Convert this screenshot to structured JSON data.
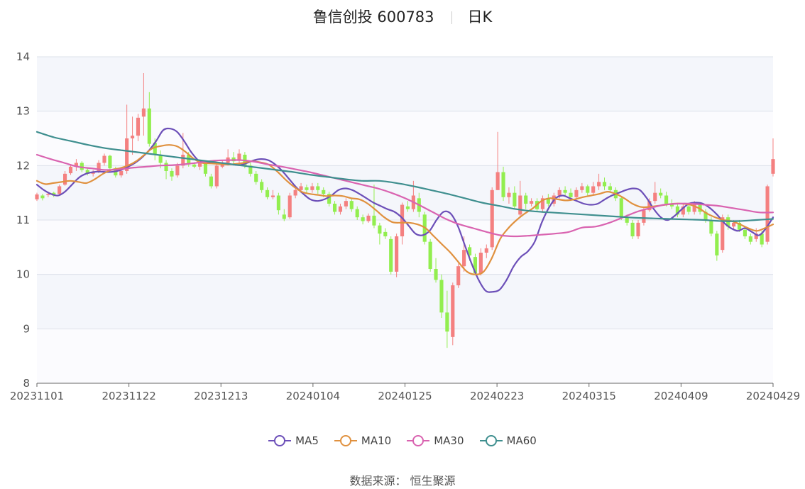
{
  "title": {
    "name": "鲁信创投 600783",
    "period": "日K"
  },
  "source": "数据来源： 恒生聚源",
  "colors": {
    "up": "#f48080",
    "down": "#92ee4f",
    "band_a": "#f4f6fb",
    "band_b": "#fbfbfe",
    "grid": "#dde1ea"
  },
  "chart_data": {
    "type": "candlestick",
    "title": "鲁信创投 600783 日K",
    "ylim": [
      8,
      14
    ],
    "y_ticks": [
      "8",
      "9",
      "10",
      "11",
      "12",
      "13",
      "14"
    ],
    "x_ticks": [
      "20231101",
      "20231122",
      "20231213",
      "20240104",
      "20240125",
      "20240223",
      "20240315",
      "20240409",
      "20240429"
    ],
    "grid": true,
    "legend_position": "bottom",
    "candles": [
      [
        11.38,
        11.47,
        11.35,
        11.5
      ],
      [
        11.45,
        11.4,
        11.36,
        11.48
      ],
      [
        11.46,
        11.48,
        11.42,
        11.52
      ],
      [
        11.5,
        11.45,
        11.42,
        11.52
      ],
      [
        11.48,
        11.62,
        11.46,
        11.65
      ],
      [
        11.65,
        11.85,
        11.63,
        11.9
      ],
      [
        11.86,
        11.98,
        11.83,
        12.02
      ],
      [
        11.98,
        12.05,
        11.9,
        12.12
      ],
      [
        12.05,
        11.92,
        11.88,
        12.08
      ],
      [
        11.92,
        11.85,
        11.82,
        11.96
      ],
      [
        11.85,
        11.88,
        11.8,
        11.92
      ],
      [
        11.9,
        12.05,
        11.86,
        12.1
      ],
      [
        12.05,
        12.18,
        12.0,
        12.22
      ],
      [
        12.18,
        11.95,
        11.9,
        12.2
      ],
      [
        11.95,
        11.82,
        11.78,
        11.98
      ],
      [
        11.82,
        11.9,
        11.78,
        11.95
      ],
      [
        11.9,
        12.5,
        11.85,
        13.12
      ],
      [
        12.5,
        12.55,
        12.2,
        12.9
      ],
      [
        12.55,
        12.88,
        12.45,
        12.95
      ],
      [
        12.9,
        13.05,
        12.55,
        13.7
      ],
      [
        13.05,
        12.4,
        12.35,
        13.35
      ],
      [
        12.42,
        12.2,
        12.1,
        12.5
      ],
      [
        12.2,
        12.05,
        11.95,
        12.28
      ],
      [
        12.05,
        11.9,
        11.75,
        12.1
      ],
      [
        11.9,
        11.8,
        11.72,
        11.95
      ],
      [
        11.82,
        12.0,
        11.78,
        12.05
      ],
      [
        12.0,
        12.2,
        11.95,
        12.6
      ],
      [
        12.2,
        12.02,
        11.98,
        12.25
      ],
      [
        12.02,
        11.98,
        11.95,
        12.06
      ],
      [
        11.98,
        12.05,
        11.92,
        12.1
      ],
      [
        12.05,
        11.85,
        11.8,
        12.08
      ],
      [
        11.8,
        11.62,
        11.58,
        11.85
      ],
      [
        11.62,
        12.0,
        11.58,
        12.05
      ],
      [
        11.98,
        12.05,
        11.95,
        12.1
      ],
      [
        12.05,
        12.15,
        12.0,
        12.3
      ],
      [
        12.15,
        12.08,
        12.0,
        12.25
      ],
      [
        12.1,
        12.22,
        12.05,
        12.3
      ],
      [
        12.2,
        12.0,
        11.95,
        12.25
      ],
      [
        12.0,
        11.85,
        11.8,
        12.05
      ],
      [
        11.85,
        11.7,
        11.65,
        11.9
      ],
      [
        11.7,
        11.55,
        11.5,
        11.75
      ],
      [
        11.55,
        11.42,
        11.38,
        11.6
      ],
      [
        11.42,
        11.45,
        11.38,
        11.55
      ],
      [
        11.45,
        11.18,
        11.1,
        11.5
      ],
      [
        11.1,
        11.02,
        10.98,
        11.2
      ],
      [
        11.05,
        11.45,
        11.02,
        11.5
      ],
      [
        11.45,
        11.55,
        11.4,
        11.6
      ],
      [
        11.55,
        11.62,
        11.5,
        11.68
      ],
      [
        11.6,
        11.55,
        11.5,
        11.65
      ],
      [
        11.55,
        11.62,
        11.5,
        11.68
      ],
      [
        11.62,
        11.55,
        11.48,
        11.68
      ],
      [
        11.55,
        11.48,
        11.42,
        11.6
      ],
      [
        11.48,
        11.3,
        11.25,
        11.52
      ],
      [
        11.3,
        11.15,
        11.1,
        11.35
      ],
      [
        11.15,
        11.25,
        11.1,
        11.3
      ],
      [
        11.25,
        11.35,
        11.2,
        11.4
      ],
      [
        11.35,
        11.2,
        11.15,
        11.4
      ],
      [
        11.2,
        11.05,
        11.0,
        11.25
      ],
      [
        11.05,
        10.98,
        10.92,
        11.1
      ],
      [
        10.98,
        11.08,
        10.95,
        11.12
      ],
      [
        11.08,
        10.9,
        10.85,
        11.65
      ],
      [
        10.9,
        10.75,
        10.55,
        10.95
      ],
      [
        10.78,
        10.7,
        10.65,
        10.85
      ],
      [
        10.65,
        10.05,
        10.0,
        10.7
      ],
      [
        10.05,
        10.7,
        9.95,
        10.75
      ],
      [
        10.7,
        11.28,
        10.55,
        11.32
      ],
      [
        11.25,
        11.2,
        11.15,
        11.35
      ],
      [
        11.2,
        11.45,
        11.15,
        11.72
      ],
      [
        11.4,
        11.15,
        11.05,
        11.5
      ],
      [
        11.1,
        10.6,
        10.55,
        11.15
      ],
      [
        10.6,
        10.1,
        10.05,
        10.65
      ],
      [
        10.1,
        9.9,
        9.85,
        10.3
      ],
      [
        9.9,
        9.3,
        9.2,
        10.0
      ],
      [
        9.3,
        8.95,
        8.65,
        9.7
      ],
      [
        8.85,
        9.8,
        8.7,
        9.85
      ],
      [
        9.8,
        10.15,
        9.75,
        10.2
      ],
      [
        10.15,
        10.45,
        10.05,
        10.7
      ],
      [
        10.5,
        10.35,
        10.25,
        10.55
      ],
      [
        10.32,
        10.02,
        9.98,
        10.38
      ],
      [
        10.02,
        10.4,
        9.98,
        10.48
      ],
      [
        10.4,
        10.48,
        10.3,
        10.55
      ],
      [
        10.5,
        11.55,
        10.45,
        11.6
      ],
      [
        11.55,
        11.88,
        11.55,
        12.62
      ],
      [
        11.88,
        11.42,
        11.35,
        11.98
      ],
      [
        11.42,
        11.5,
        11.3,
        11.6
      ],
      [
        11.5,
        11.25,
        11.2,
        11.62
      ],
      [
        11.1,
        11.45,
        11.05,
        11.72
      ],
      [
        11.45,
        11.3,
        11.2,
        11.5
      ],
      [
        11.3,
        11.35,
        11.25,
        11.4
      ],
      [
        11.35,
        11.2,
        11.15,
        11.4
      ],
      [
        11.2,
        11.4,
        11.15,
        11.45
      ],
      [
        11.4,
        11.3,
        11.25,
        11.48
      ],
      [
        11.3,
        11.45,
        11.25,
        11.5
      ],
      [
        11.45,
        11.55,
        11.4,
        11.6
      ],
      [
        11.55,
        11.5,
        11.45,
        11.62
      ],
      [
        11.5,
        11.42,
        11.35,
        11.58
      ],
      [
        11.42,
        11.55,
        11.4,
        11.6
      ],
      [
        11.55,
        11.62,
        11.5,
        11.68
      ],
      [
        11.62,
        11.5,
        11.45,
        11.65
      ],
      [
        11.5,
        11.62,
        11.45,
        11.7
      ],
      [
        11.62,
        11.7,
        11.55,
        11.85
      ],
      [
        11.7,
        11.62,
        11.55,
        11.78
      ],
      [
        11.62,
        11.55,
        11.5,
        11.68
      ],
      [
        11.55,
        11.4,
        11.35,
        11.6
      ],
      [
        11.4,
        11.05,
        11.0,
        11.42
      ],
      [
        11.05,
        10.95,
        10.9,
        11.1
      ],
      [
        10.95,
        10.7,
        10.65,
        11.0
      ],
      [
        10.7,
        10.95,
        10.65,
        11.0
      ],
      [
        10.95,
        11.18,
        10.9,
        11.22
      ],
      [
        11.18,
        11.35,
        11.15,
        11.4
      ],
      [
        11.35,
        11.5,
        11.3,
        11.7
      ],
      [
        11.5,
        11.45,
        11.4,
        11.58
      ],
      [
        11.45,
        11.3,
        11.25,
        11.52
      ],
      [
        11.3,
        11.25,
        11.2,
        11.38
      ],
      [
        11.25,
        11.1,
        11.05,
        11.3
      ],
      [
        11.1,
        11.25,
        11.05,
        11.3
      ],
      [
        11.25,
        11.15,
        11.1,
        11.32
      ],
      [
        11.15,
        11.3,
        11.1,
        11.35
      ],
      [
        11.3,
        11.15,
        11.1,
        11.32
      ],
      [
        11.15,
        11.0,
        10.95,
        11.2
      ],
      [
        11.0,
        10.75,
        10.7,
        11.05
      ],
      [
        10.75,
        10.35,
        10.25,
        10.8
      ],
      [
        10.45,
        11.05,
        10.4,
        11.1
      ],
      [
        11.05,
        10.88,
        10.82,
        11.1
      ],
      [
        10.88,
        10.95,
        10.82,
        11.0
      ],
      [
        10.95,
        10.82,
        10.78,
        11.0
      ],
      [
        10.82,
        10.7,
        10.65,
        10.85
      ],
      [
        10.7,
        10.6,
        10.55,
        10.75
      ],
      [
        10.65,
        10.75,
        10.6,
        10.85
      ],
      [
        10.75,
        10.55,
        10.5,
        10.8
      ],
      [
        10.6,
        11.62,
        10.55,
        11.65
      ],
      [
        11.85,
        12.12,
        11.8,
        12.5
      ]
    ],
    "series": [
      {
        "name": "MA5",
        "color": "#6c4fb8",
        "values": [
          11.65,
          11.55,
          11.48,
          11.45,
          11.52,
          11.65,
          11.78,
          11.85,
          11.88,
          11.89,
          11.88,
          11.89,
          11.92,
          11.98,
          12.05,
          12.15,
          12.28,
          12.45,
          12.65,
          12.68,
          12.62,
          12.45,
          12.25,
          12.1,
          12.06,
          12.05,
          12.05,
          12.04,
          12.02,
          12.01,
          12.05,
          12.1,
          12.12,
          12.1,
          12.02,
          11.9,
          11.75,
          11.6,
          11.48,
          11.38,
          11.35,
          11.38,
          11.45,
          11.55,
          11.58,
          11.55,
          11.48,
          11.4,
          11.32,
          11.26,
          11.2,
          11.15,
          11.05,
          10.9,
          10.75,
          10.72,
          10.8,
          11.0,
          11.15,
          11.12,
          10.9,
          10.55,
          10.2,
          9.9,
          9.7,
          9.68,
          9.72,
          9.9,
          10.15,
          10.32,
          10.42,
          10.6,
          10.95,
          11.22,
          11.4,
          11.45,
          11.4,
          11.35,
          11.3,
          11.28,
          11.3,
          11.38,
          11.45,
          11.5,
          11.55,
          11.58,
          11.55,
          11.4,
          11.2,
          11.05,
          11.0,
          11.08,
          11.2,
          11.3,
          11.32,
          11.3,
          11.22,
          11.1,
          10.95,
          10.85,
          10.8,
          10.85,
          10.78,
          10.72,
          10.85,
          11.05
        ]
      },
      {
        "name": "MA10",
        "color": "#e0913f",
        "values": [
          11.72,
          11.66,
          11.68,
          11.7,
          11.72,
          11.7,
          11.68,
          11.75,
          11.85,
          11.92,
          11.95,
          12.0,
          12.08,
          12.2,
          12.32,
          12.36,
          12.38,
          12.35,
          12.25,
          12.12,
          12.05,
          12.04,
          12.03,
          12.02,
          12.03,
          12.05,
          12.08,
          12.06,
          12.02,
          11.9,
          11.75,
          11.62,
          11.52,
          11.48,
          11.46,
          11.44,
          11.45,
          11.44,
          11.4,
          11.38,
          11.3,
          11.18,
          11.05,
          10.96,
          10.95,
          10.95,
          10.92,
          10.85,
          10.7,
          10.55,
          10.4,
          10.22,
          10.05,
          10.0,
          10.05,
          10.3,
          10.65,
          10.85,
          11.0,
          11.12,
          11.22,
          11.35,
          11.4,
          11.38,
          11.36,
          11.38,
          11.42,
          11.45,
          11.48,
          11.52,
          11.48,
          11.4,
          11.3,
          11.24,
          11.24,
          11.26,
          11.28,
          11.3,
          11.3,
          11.28,
          11.22,
          11.12,
          11.05,
          11.0,
          10.98,
          10.92,
          10.85,
          10.8,
          10.85,
          10.92
        ]
      },
      {
        "name": "MA30",
        "color": "#d963b0",
        "values": [
          12.2,
          12.12,
          12.05,
          11.98,
          11.95,
          11.92,
          11.93,
          11.96,
          11.98,
          12.0,
          12.01,
          12.03,
          12.06,
          12.09,
          12.1,
          12.1,
          12.07,
          12.02,
          11.98,
          11.93,
          11.88,
          11.82,
          11.76,
          11.7,
          11.64,
          11.58,
          11.5,
          11.4,
          11.28,
          11.15,
          11.02,
          10.92,
          10.85,
          10.78,
          10.72,
          10.7,
          10.71,
          10.73,
          10.75,
          10.78,
          10.86,
          10.88,
          10.95,
          11.05,
          11.15,
          11.22,
          11.28,
          11.3,
          11.3,
          11.28,
          11.26,
          11.22,
          11.18,
          11.14,
          11.14
        ]
      },
      {
        "name": "MA60",
        "color": "#3f8f8f",
        "values": [
          12.62,
          12.52,
          12.45,
          12.38,
          12.32,
          12.28,
          12.24,
          12.2,
          12.16,
          12.12,
          12.08,
          12.04,
          12.0,
          11.96,
          11.92,
          11.88,
          11.83,
          11.79,
          11.75,
          11.72,
          11.72,
          11.68,
          11.62,
          11.55,
          11.48,
          11.4,
          11.32,
          11.26,
          11.2,
          11.16,
          11.14,
          11.12,
          11.1,
          11.08,
          11.06,
          11.04,
          11.03,
          11.02,
          11.01,
          11.0,
          10.98,
          10.98,
          11.0,
          11.02
        ]
      }
    ]
  }
}
